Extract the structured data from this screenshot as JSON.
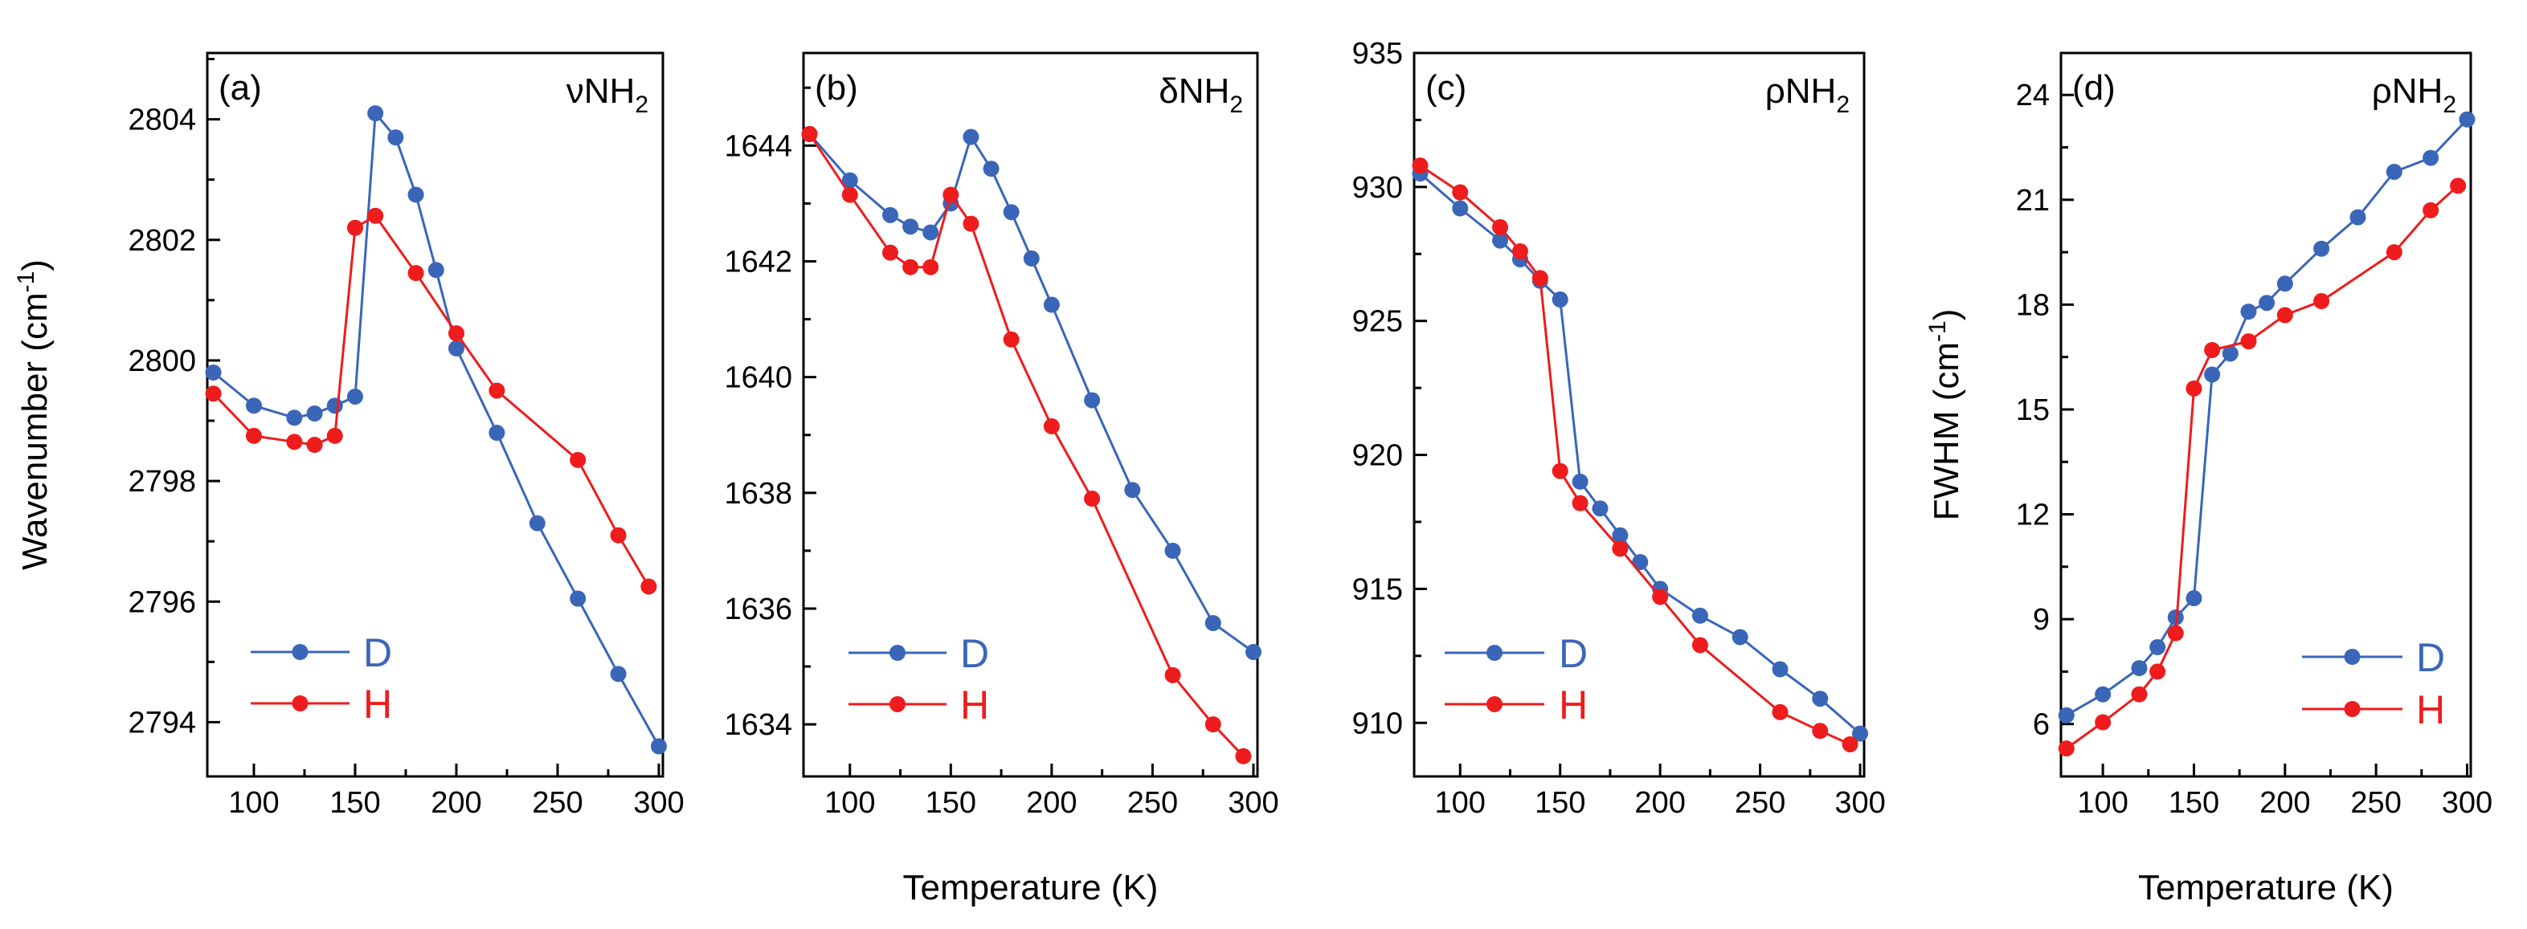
{
  "figure": {
    "x_axis_title": "Temperature (K)",
    "colors": {
      "D": "#3a66b8",
      "H": "#ee1c1c"
    }
  },
  "chart_data": [
    {
      "type": "line",
      "panel": "(a)",
      "mode": {
        "symbol": "ν",
        "base": "NH",
        "subscript": "2"
      },
      "ylabel": {
        "text": "Wavenumber (cm",
        "sup": "-1",
        "close": ")"
      },
      "xlabel": "",
      "xlim": [
        77,
        302
      ],
      "ylim": [
        2793.1,
        2805.1
      ],
      "xticks": [
        100,
        150,
        200,
        250,
        300
      ],
      "yticks": [
        2794,
        2796,
        2798,
        2800,
        2802,
        2804
      ],
      "legend_position": "bottom-left",
      "series": [
        {
          "name": "D",
          "color": "#3a66b8",
          "x": [
            80,
            100,
            120,
            130,
            140,
            150,
            160,
            170,
            180,
            190,
            200,
            220,
            240,
            260,
            280,
            300
          ],
          "y": [
            2799.8,
            2799.25,
            2799.05,
            2799.12,
            2799.25,
            2799.4,
            2804.1,
            2803.7,
            2802.75,
            2801.5,
            2800.2,
            2798.8,
            2797.3,
            2796.05,
            2794.8,
            2793.6
          ]
        },
        {
          "name": "H",
          "color": "#ee1c1c",
          "x": [
            80,
            100,
            120,
            130,
            140,
            150,
            160,
            180,
            200,
            220,
            260,
            280,
            295
          ],
          "y": [
            2799.45,
            2798.75,
            2798.65,
            2798.6,
            2798.75,
            2802.2,
            2802.4,
            2801.45,
            2800.45,
            2799.5,
            2798.35,
            2797.1,
            2796.25
          ]
        }
      ]
    },
    {
      "type": "line",
      "panel": "(b)",
      "mode": {
        "symbol": "δ",
        "base": "NH",
        "subscript": "2"
      },
      "ylabel": null,
      "xlabel": "Temperature (K)",
      "xlim": [
        77,
        302
      ],
      "ylim": [
        1633.1,
        1645.6
      ],
      "xticks": [
        100,
        150,
        200,
        250,
        300
      ],
      "yticks": [
        1634,
        1636,
        1638,
        1640,
        1642,
        1644
      ],
      "legend_position": "bottom-left",
      "series": [
        {
          "name": "D",
          "color": "#3a66b8",
          "x": [
            80,
            100,
            120,
            130,
            140,
            150,
            160,
            170,
            180,
            190,
            200,
            220,
            240,
            260,
            280,
            300
          ],
          "y": [
            1644.2,
            1643.4,
            1642.8,
            1642.6,
            1642.5,
            1643.0,
            1644.15,
            1643.6,
            1642.85,
            1642.05,
            1641.25,
            1639.6,
            1638.05,
            1637.0,
            1635.75,
            1635.25
          ]
        },
        {
          "name": "H",
          "color": "#ee1c1c",
          "x": [
            80,
            100,
            120,
            130,
            140,
            150,
            160,
            180,
            200,
            220,
            260,
            280,
            295
          ],
          "y": [
            1644.2,
            1643.15,
            1642.15,
            1641.9,
            1641.9,
            1643.15,
            1642.65,
            1640.65,
            1639.15,
            1637.9,
            1634.85,
            1634.0,
            1633.45
          ]
        }
      ]
    },
    {
      "type": "line",
      "panel": "(c)",
      "mode": {
        "symbol": "ρ",
        "base": "NH",
        "subscript": "2"
      },
      "ylabel": null,
      "xlabel": "",
      "xlim": [
        77,
        302
      ],
      "ylim": [
        908.0,
        935.0
      ],
      "xticks": [
        100,
        150,
        200,
        250,
        300
      ],
      "yticks": [
        910,
        915,
        920,
        925,
        930,
        935
      ],
      "legend_position": "bottom-left",
      "series": [
        {
          "name": "D",
          "color": "#3a66b8",
          "x": [
            80,
            100,
            120,
            130,
            140,
            150,
            160,
            170,
            180,
            190,
            200,
            220,
            240,
            260,
            280,
            300
          ],
          "y": [
            930.5,
            929.2,
            928.0,
            927.3,
            926.5,
            925.8,
            919.0,
            918.0,
            917.0,
            916.0,
            915.0,
            914.0,
            913.2,
            912.0,
            910.9,
            909.6
          ]
        },
        {
          "name": "H",
          "color": "#ee1c1c",
          "x": [
            80,
            100,
            120,
            130,
            140,
            150,
            160,
            180,
            200,
            220,
            260,
            280,
            295
          ],
          "y": [
            930.8,
            929.8,
            928.5,
            927.6,
            926.6,
            919.4,
            918.2,
            916.5,
            914.7,
            912.9,
            910.4,
            909.7,
            909.2
          ]
        }
      ]
    },
    {
      "type": "line",
      "panel": "(d)",
      "mode": {
        "symbol": "ρ",
        "base": "NH",
        "subscript": "2"
      },
      "ylabel": {
        "text": "FWHM (cm",
        "sup": "-1",
        "close": ")"
      },
      "xlabel": "Temperature (K)",
      "xlim": [
        77,
        302
      ],
      "ylim": [
        4.5,
        25.2
      ],
      "xticks": [
        100,
        150,
        200,
        250,
        300
      ],
      "yticks": [
        6,
        9,
        12,
        15,
        18,
        21,
        24
      ],
      "legend_position": "bottom-right",
      "series": [
        {
          "name": "D",
          "color": "#3a66b8",
          "x": [
            80,
            100,
            120,
            130,
            140,
            150,
            160,
            170,
            180,
            190,
            200,
            220,
            240,
            260,
            280,
            300
          ],
          "y": [
            6.25,
            6.85,
            7.6,
            8.2,
            9.05,
            9.6,
            16.0,
            16.6,
            17.8,
            18.05,
            18.6,
            19.6,
            20.5,
            21.8,
            22.2,
            23.3
          ]
        },
        {
          "name": "H",
          "color": "#ee1c1c",
          "x": [
            80,
            100,
            120,
            130,
            140,
            150,
            160,
            180,
            200,
            220,
            260,
            280,
            295
          ],
          "y": [
            5.3,
            6.05,
            6.85,
            7.5,
            8.6,
            15.6,
            16.7,
            16.95,
            17.7,
            18.1,
            19.5,
            20.7,
            21.4
          ]
        }
      ]
    }
  ]
}
